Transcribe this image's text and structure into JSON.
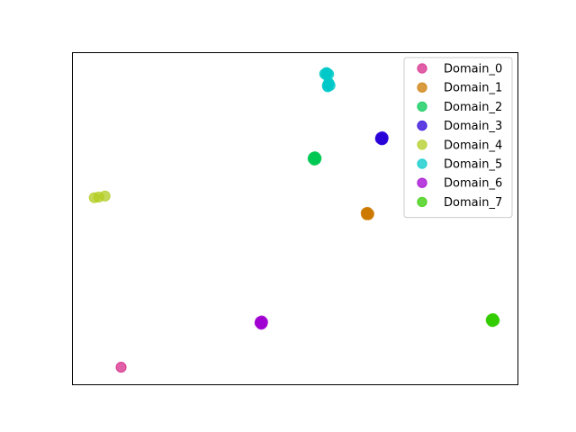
{
  "chart_data": {
    "type": "scatter",
    "title": "",
    "xlabel": "",
    "ylabel": "",
    "axes_ticks_visible": false,
    "grid": false,
    "legend_position": "upper right",
    "xlim": [
      0,
      100
    ],
    "ylim": [
      0,
      100
    ],
    "series": [
      {
        "name": "Domain_0",
        "color": "#d62a8a",
        "points": [
          [
            11,
            5.4
          ]
        ]
      },
      {
        "name": "Domain_1",
        "color": "#cc7a00",
        "points": [
          [
            66.3,
            51.5
          ],
          [
            66.0,
            51.8
          ],
          [
            66.4,
            51.2
          ],
          [
            66.1,
            51.6
          ],
          [
            66.2,
            51.3
          ],
          [
            65.9,
            51.7
          ],
          [
            66.5,
            51.5
          ],
          [
            66.2,
            51.9
          ],
          [
            66.0,
            51.2
          ]
        ]
      },
      {
        "name": "Domain_2",
        "color": "#00c853",
        "points": [
          [
            54.4,
            68.1
          ],
          [
            54.1,
            68.4
          ],
          [
            54.6,
            67.8
          ],
          [
            54.2,
            67.9
          ],
          [
            54.5,
            68.5
          ],
          [
            54.0,
            68.0
          ],
          [
            54.7,
            68.2
          ],
          [
            54.3,
            67.6
          ],
          [
            54.4,
            68.6
          ]
        ]
      },
      {
        "name": "Domain_3",
        "color": "#2b00d8",
        "points": [
          [
            69.4,
            74.1
          ],
          [
            69.2,
            74.4
          ],
          [
            69.6,
            73.8
          ],
          [
            69.3,
            73.9
          ],
          [
            69.7,
            74.3
          ],
          [
            69.1,
            74.0
          ],
          [
            69.5,
            74.6
          ],
          [
            69.4,
            73.7
          ]
        ]
      },
      {
        "name": "Domain_4",
        "color": "#b2cc20",
        "points": [
          [
            5.0,
            56.3
          ],
          [
            7.4,
            56.8
          ],
          [
            6.0,
            56.5
          ]
        ]
      },
      {
        "name": "Domain_5",
        "color": "#00c8c8",
        "points": [
          [
            56.6,
            93.5
          ],
          [
            57.2,
            93.7
          ],
          [
            56.9,
            93.2
          ],
          [
            57.5,
            93.4
          ],
          [
            57.0,
            93.9
          ],
          [
            57.3,
            90.3
          ],
          [
            57.6,
            90.6
          ],
          [
            57.2,
            89.9
          ],
          [
            57.8,
            90.0
          ],
          [
            57.5,
            90.8
          ],
          [
            57.3,
            89.6
          ]
        ]
      },
      {
        "name": "Domain_6",
        "color": "#a000d0",
        "points": [
          [
            42.4,
            18.8
          ],
          [
            42.2,
            19.1
          ],
          [
            42.6,
            18.5
          ],
          [
            42.3,
            18.6
          ],
          [
            42.7,
            19.0
          ],
          [
            42.1,
            18.7
          ],
          [
            42.5,
            19.3
          ],
          [
            42.4,
            18.3
          ]
        ]
      },
      {
        "name": "Domain_7",
        "color": "#33cc00",
        "points": [
          [
            94.2,
            19.5
          ],
          [
            94.0,
            19.8
          ],
          [
            94.4,
            19.3
          ],
          [
            94.1,
            19.2
          ],
          [
            94.5,
            19.7
          ],
          [
            93.9,
            19.5
          ],
          [
            94.3,
            20.0
          ],
          [
            94.2,
            19.1
          ],
          [
            94.6,
            19.4
          ]
        ]
      }
    ]
  }
}
